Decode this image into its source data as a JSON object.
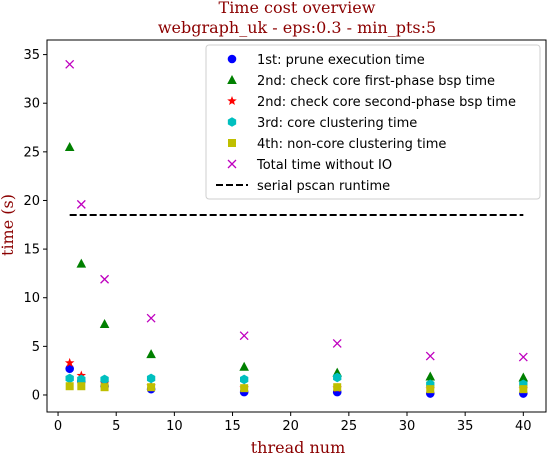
{
  "chart_data": {
    "type": "scatter",
    "title": "Time cost overview",
    "subtitle": "webgraph_uk - eps:0.3 - min_pts:5",
    "xlabel": "thread num",
    "ylabel": "time (s)",
    "xlim": [
      -0.95,
      41.95
    ],
    "ylim": [
      -1.75,
      36.5
    ],
    "xticks": [
      0,
      5,
      10,
      15,
      20,
      25,
      30,
      35,
      40
    ],
    "yticks": [
      0,
      5,
      10,
      15,
      20,
      25,
      30,
      35
    ],
    "grid": false,
    "legend_position": "top-right",
    "series": [
      {
        "name": "1st: prune execution time",
        "marker": "circle",
        "color": "#0000ff",
        "x": [
          1,
          2,
          4,
          8,
          16,
          24,
          32,
          40
        ],
        "y": [
          2.7,
          1.4,
          0.9,
          0.6,
          0.3,
          0.3,
          0.15,
          0.15
        ]
      },
      {
        "name": "2nd: check core first-phase bsp time",
        "marker": "triangle",
        "color": "#008000",
        "x": [
          1,
          2,
          4,
          8,
          16,
          24,
          32,
          40
        ],
        "y": [
          25.5,
          13.5,
          7.3,
          4.2,
          2.9,
          2.3,
          1.9,
          1.8
        ]
      },
      {
        "name": "2nd: check core second-phase bsp time",
        "marker": "star",
        "color": "#ff0000",
        "x": [
          1,
          2,
          4,
          8,
          16,
          24,
          32,
          40
        ],
        "y": [
          3.3,
          2.0,
          1.2,
          0.9,
          0.7,
          0.7,
          0.6,
          0.6
        ]
      },
      {
        "name": "3rd: core clustering time",
        "marker": "hexagon",
        "color": "#00bfbf",
        "x": [
          1,
          2,
          4,
          8,
          16,
          24,
          32,
          40
        ],
        "y": [
          1.7,
          1.6,
          1.6,
          1.7,
          1.6,
          1.8,
          1.1,
          1.1
        ]
      },
      {
        "name": "4th: non-core clustering time",
        "marker": "square",
        "color": "#bfbf00",
        "x": [
          1,
          2,
          4,
          8,
          16,
          24,
          32,
          40
        ],
        "y": [
          0.9,
          0.9,
          0.8,
          0.8,
          0.7,
          0.8,
          0.6,
          0.6
        ]
      },
      {
        "name": "Total time without IO",
        "marker": "x",
        "color": "#bf00bf",
        "x": [
          1,
          2,
          4,
          8,
          16,
          24,
          32,
          40
        ],
        "y": [
          34.0,
          19.6,
          11.9,
          7.9,
          6.1,
          5.3,
          4.0,
          3.9
        ]
      },
      {
        "name": "serial pscan runtime",
        "marker": "dashed-line",
        "color": "#000000",
        "x": [
          1,
          40
        ],
        "y": [
          18.5,
          18.5
        ]
      }
    ]
  }
}
